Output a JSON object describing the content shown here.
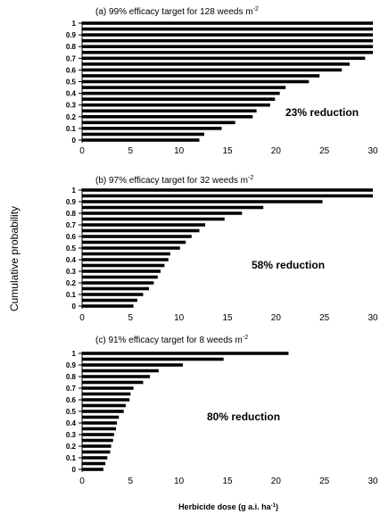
{
  "figure": {
    "ylabel": "Cumulative probability",
    "xlabel": "Herbicide dose (g a.i. ha",
    "xlabel_sup": "-1",
    "xlabel_close": ")"
  },
  "chart_data": [
    {
      "type": "bar",
      "orientation": "horizontal",
      "title": "(a) 99% efficacy target for 128 weeds m",
      "title_sup": "-2",
      "annotation": "23% reduction",
      "xlim": [
        0,
        30
      ],
      "xticks": [
        "0",
        "5",
        "10",
        "15",
        "20",
        "25",
        "30"
      ],
      "yticks": [
        "1",
        "0.9",
        "0.8",
        "0.7",
        "0.6",
        "0.5",
        "0.4",
        "0.3",
        "0.2",
        "0.1",
        "0"
      ],
      "bar_color": "#000000",
      "values": [
        30,
        30,
        30,
        30,
        30,
        30,
        29.2,
        27.6,
        26.8,
        24.5,
        23.4,
        21.0,
        20.4,
        19.9,
        19.4,
        18.0,
        17.6,
        15.8,
        14.4,
        12.6,
        12.1
      ]
    },
    {
      "type": "bar",
      "orientation": "horizontal",
      "title": "(b) 97% efficacy target for 32 weeds m",
      "title_sup": "-2",
      "annotation": "58% reduction",
      "xlim": [
        0,
        30
      ],
      "xticks": [
        "0",
        "5",
        "10",
        "15",
        "20",
        "25",
        "30"
      ],
      "yticks": [
        "1",
        "0.9",
        "0.8",
        "0.7",
        "0.6",
        "0.5",
        "0.4",
        "0.3",
        "0.2",
        "0.1",
        "0"
      ],
      "bar_color": "#000000",
      "values": [
        30,
        30,
        24.8,
        18.7,
        16.5,
        14.7,
        12.7,
        12.1,
        11.3,
        10.7,
        10.1,
        9.1,
        8.9,
        8.5,
        8.1,
        7.8,
        7.4,
        6.9,
        6.3,
        5.7,
        5.3
      ]
    },
    {
      "type": "bar",
      "orientation": "horizontal",
      "title": "(c) 91% efficacy target for 8 weeds m",
      "title_sup": "-2",
      "annotation": "80% reduction",
      "xlim": [
        0,
        30
      ],
      "xticks": [
        "0",
        "5",
        "10",
        "15",
        "20",
        "25",
        "30"
      ],
      "yticks": [
        "1",
        "0.9",
        "0.8",
        "0.7",
        "0.6",
        "0.5",
        "0.4",
        "0.3",
        "0.2",
        "0.1",
        "0"
      ],
      "bar_color": "#000000",
      "values": [
        21.3,
        14.6,
        10.4,
        7.9,
        7.0,
        6.3,
        5.3,
        5.0,
        4.9,
        4.5,
        4.3,
        3.8,
        3.6,
        3.5,
        3.3,
        3.2,
        3.0,
        2.9,
        2.6,
        2.4,
        2.2
      ]
    }
  ]
}
